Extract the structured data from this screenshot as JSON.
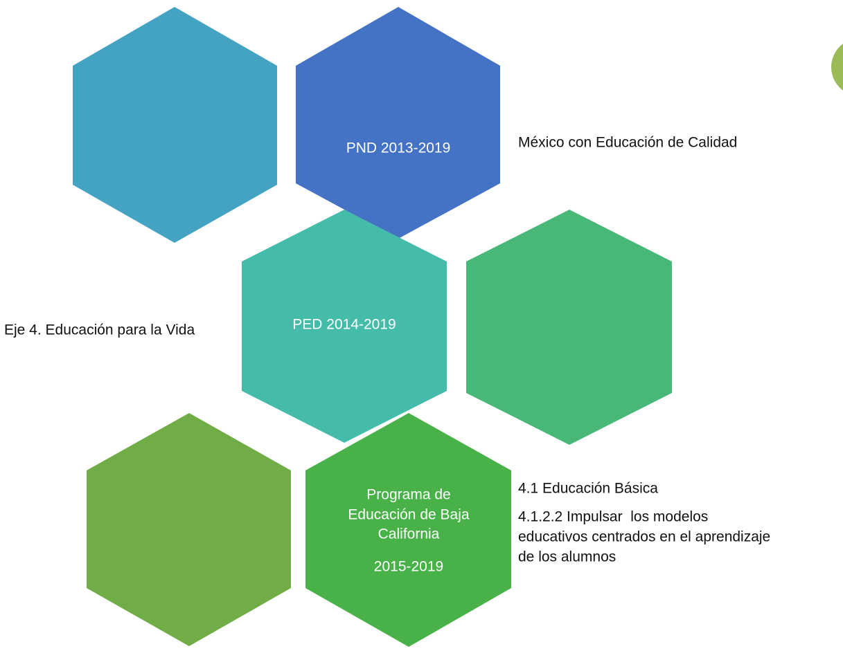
{
  "nodes": [
    {
      "label": [
        "PND 2013-2019"
      ]
    },
    {
      "label": [
        "PED 2014-2019"
      ]
    },
    {
      "label": [
        "Programa de",
        "Educación de Baja",
        "California",
        "2015-2019"
      ]
    }
  ],
  "notes": [
    {
      "lines": [
        "México con Educación de Calidad"
      ]
    },
    {
      "lines": [
        "Eje 4. Educación para la Vida"
      ]
    },
    {
      "lines": [
        "4.1 Educación Básica"
      ]
    },
    {
      "lines": [
        "4.1.2.2 Impulsar  los modelos",
        "educativos centrados en el aprendizaje",
        "de los alumnos"
      ]
    }
  ]
}
